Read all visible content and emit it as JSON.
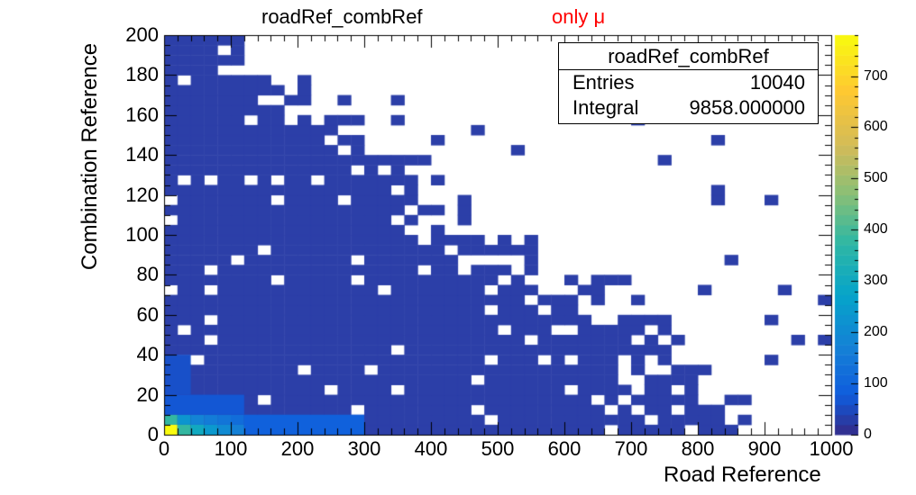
{
  "chart_data": {
    "type": "heatmap",
    "title": "roadRef_combRef",
    "annotation": "only μ",
    "xlabel": "Road Reference",
    "ylabel": "Combination Reference",
    "xlim": [
      0,
      1000
    ],
    "ylim": [
      0,
      200
    ],
    "xticks": [
      "0",
      "100",
      "200",
      "300",
      "400",
      "500",
      "600",
      "700",
      "800",
      "900",
      "1000"
    ],
    "yticks": [
      "0",
      "20",
      "40",
      "60",
      "80",
      "100",
      "120",
      "140",
      "160",
      "180",
      "200"
    ],
    "zlim": [
      0,
      780
    ],
    "zticks": [
      "0",
      "100",
      "200",
      "300",
      "400",
      "500",
      "600",
      "700"
    ],
    "stats": {
      "title": "roadRef_combRef",
      "entries_label": "Entries",
      "entries": "10040",
      "integral_label": "Integral",
      "integral": "9858.000000"
    },
    "bins_x": 50,
    "bins_y": 40,
    "hot_cells": [
      {
        "x": [
          0,
          20
        ],
        "y": [
          0,
          5
        ],
        "z": 780
      },
      {
        "x": [
          20,
          40
        ],
        "y": [
          0,
          5
        ],
        "z": 380
      },
      {
        "x": [
          40,
          60
        ],
        "y": [
          0,
          5
        ],
        "z": 300
      },
      {
        "x": [
          60,
          80
        ],
        "y": [
          0,
          5
        ],
        "z": 240
      },
      {
        "x": [
          80,
          100
        ],
        "y": [
          0,
          5
        ],
        "z": 200
      },
      {
        "x": [
          100,
          120
        ],
        "y": [
          0,
          5
        ],
        "z": 170
      },
      {
        "x": [
          0,
          20
        ],
        "y": [
          5,
          10
        ],
        "z": 380
      },
      {
        "x": [
          20,
          40
        ],
        "y": [
          5,
          10
        ],
        "z": 230
      },
      {
        "x": [
          40,
          60
        ],
        "y": [
          5,
          10
        ],
        "z": 180
      },
      {
        "x": [
          60,
          80
        ],
        "y": [
          5,
          10
        ],
        "z": 160
      },
      {
        "x": [
          80,
          100
        ],
        "y": [
          5,
          10
        ],
        "z": 140
      },
      {
        "x": [
          100,
          120
        ],
        "y": [
          5,
          10
        ],
        "z": 120
      },
      {
        "x": [
          120,
          300
        ],
        "y": [
          0,
          10
        ],
        "z": 90
      },
      {
        "x": [
          0,
          120
        ],
        "y": [
          10,
          20
        ],
        "z": 70
      },
      {
        "x": [
          0,
          40
        ],
        "y": [
          20,
          40
        ],
        "z": 60
      }
    ],
    "filled_rows": [
      {
        "y": [
          0,
          5
        ],
        "x": [
          0,
          888
        ]
      },
      {
        "y": [
          5,
          10
        ],
        "x": [
          0,
          888
        ]
      },
      {
        "y": [
          10,
          20
        ],
        "x": [
          0,
          860
        ]
      },
      {
        "y": [
          20,
          40
        ],
        "x": [
          0,
          820
        ]
      },
      {
        "y": [
          40,
          60
        ],
        "x": [
          0,
          760
        ]
      },
      {
        "y": [
          60,
          80
        ],
        "x": [
          0,
          660
        ]
      },
      {
        "y": [
          80,
          100
        ],
        "x": [
          0,
          560
        ]
      },
      {
        "y": [
          100,
          120
        ],
        "x": [
          0,
          460
        ]
      },
      {
        "y": [
          120,
          140
        ],
        "x": [
          0,
          380
        ]
      },
      {
        "y": [
          140,
          160
        ],
        "x": [
          0,
          300
        ]
      },
      {
        "y": [
          160,
          180
        ],
        "x": [
          0,
          220
        ]
      },
      {
        "y": [
          180,
          200
        ],
        "x": [
          0,
          120
        ]
      }
    ]
  }
}
